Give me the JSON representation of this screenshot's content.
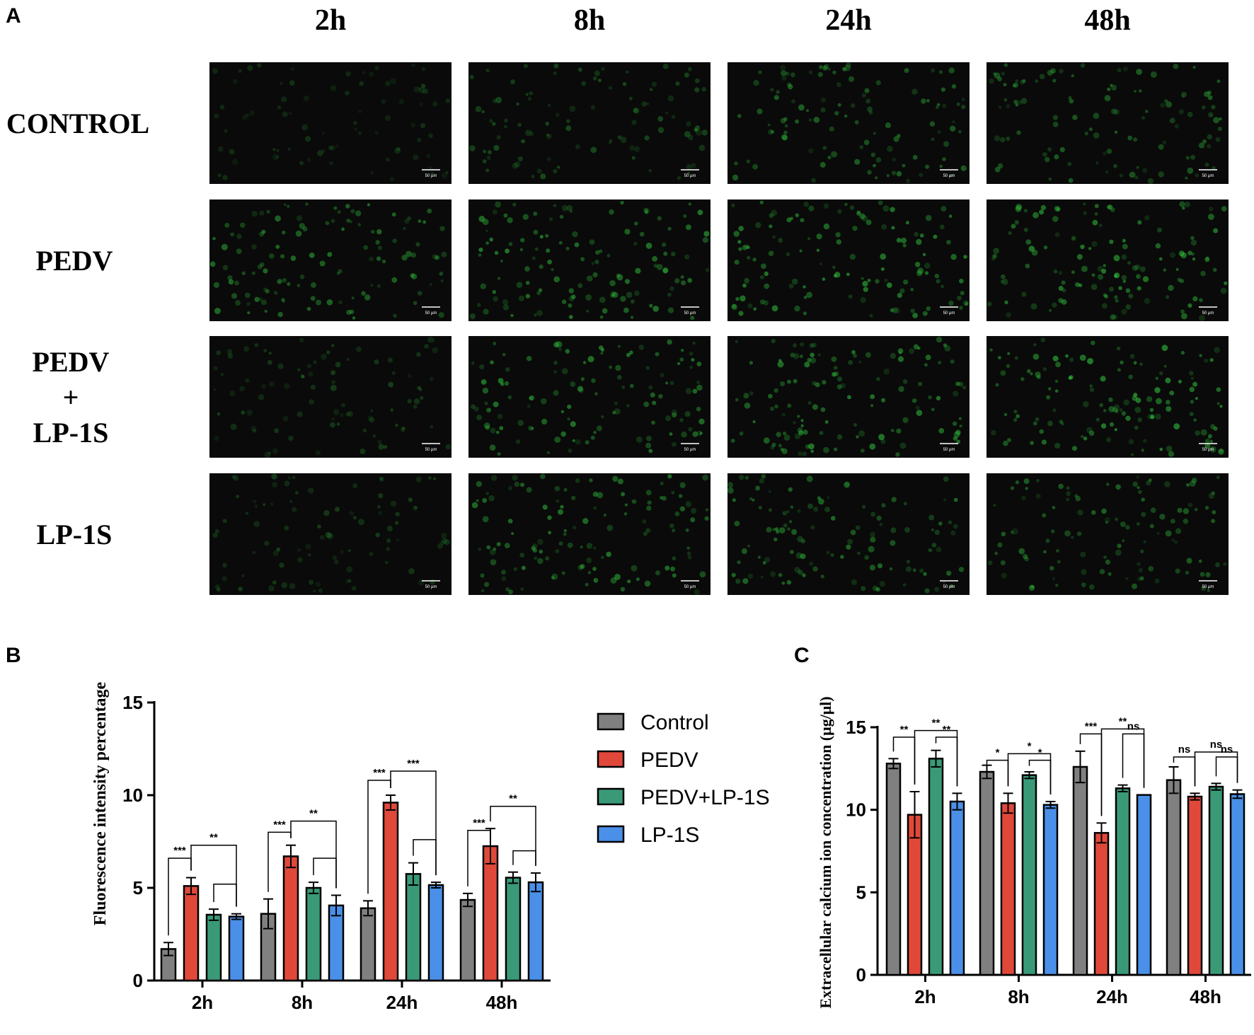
{
  "panels": {
    "A": "A",
    "B": "B",
    "C": "C"
  },
  "micrographs": {
    "columns": [
      "2h",
      "8h",
      "24h",
      "48h"
    ],
    "rows": [
      {
        "lines": [
          "CONTROL"
        ]
      },
      {
        "lines": [
          "PEDV"
        ]
      },
      {
        "lines": [
          "PEDV",
          "+",
          "LP-1S"
        ]
      },
      {
        "lines": [
          "LP-1S"
        ]
      }
    ],
    "scale_bar_label": "50 μm",
    "brightness": [
      [
        0.25,
        0.45,
        0.6,
        0.6
      ],
      [
        0.7,
        0.8,
        0.8,
        0.8
      ],
      [
        0.35,
        0.75,
        0.8,
        0.85
      ],
      [
        0.35,
        0.75,
        0.7,
        0.6
      ]
    ]
  },
  "colors": {
    "Control": "#808080",
    "PEDV": "#e0493a",
    "PEDV+LP-1S": "#3a9a78",
    "LP-1S": "#4a90e8",
    "background": "#0a0a0a",
    "cell": "#2fb83a"
  },
  "legend": {
    "items": [
      "Control",
      "PEDV",
      "PEDV+LP-1S",
      "LP-1S"
    ]
  },
  "chart_data": [
    {
      "id": "B",
      "type": "bar",
      "title": "",
      "xlabel": "",
      "ylabel": "Fluorescence intensity percentage",
      "ylim": [
        0,
        15
      ],
      "yticks": [
        "0",
        "5",
        "10",
        "15"
      ],
      "categories": [
        "2h",
        "8h",
        "24h",
        "48h"
      ],
      "series": [
        {
          "name": "Control",
          "values": [
            1.7,
            3.6,
            3.9,
            4.35
          ],
          "errors": [
            0.35,
            0.8,
            0.4,
            0.35
          ]
        },
        {
          "name": "PEDV",
          "values": [
            5.1,
            6.7,
            9.6,
            7.25
          ],
          "errors": [
            0.45,
            0.6,
            0.4,
            0.95
          ]
        },
        {
          "name": "PEDV+LP-1S",
          "values": [
            3.55,
            5.0,
            5.75,
            5.55
          ],
          "errors": [
            0.3,
            0.3,
            0.6,
            0.3
          ]
        },
        {
          "name": "LP-1S",
          "values": [
            3.45,
            4.05,
            5.15,
            5.3
          ],
          "errors": [
            0.15,
            0.55,
            0.15,
            0.5
          ]
        }
      ],
      "significance": [
        {
          "labels": [
            "***",
            "**",
            ""
          ],
          "heights": [
            6.6,
            7.3,
            5.2
          ]
        },
        {
          "labels": [
            "***",
            "**",
            ""
          ],
          "heights": [
            8.0,
            8.6,
            6.6
          ]
        },
        {
          "labels": [
            "***",
            "***",
            ""
          ],
          "heights": [
            10.8,
            11.3,
            7.6
          ]
        },
        {
          "labels": [
            "***",
            "**",
            ""
          ],
          "heights": [
            8.1,
            9.4,
            7.0
          ]
        }
      ]
    },
    {
      "id": "C",
      "type": "bar",
      "title": "",
      "xlabel": "",
      "ylabel": "Extracellular calcium ion concentration (μg/μl)",
      "ylim": [
        0,
        15
      ],
      "yticks": [
        "0",
        "5",
        "10",
        "15"
      ],
      "categories": [
        "2h",
        "8h",
        "24h",
        "48h"
      ],
      "series": [
        {
          "name": "Control",
          "values": [
            12.8,
            12.3,
            12.6,
            11.8
          ],
          "errors": [
            0.3,
            0.4,
            0.95,
            0.8
          ]
        },
        {
          "name": "PEDV",
          "values": [
            9.7,
            10.4,
            8.6,
            10.8
          ],
          "errors": [
            1.4,
            0.6,
            0.6,
            0.2
          ]
        },
        {
          "name": "PEDV+LP-1S",
          "values": [
            13.1,
            12.1,
            11.3,
            11.4
          ],
          "errors": [
            0.5,
            0.2,
            0.2,
            0.2
          ]
        },
        {
          "name": "LP-1S",
          "values": [
            10.5,
            10.3,
            10.9,
            10.95
          ],
          "errors": [
            0.5,
            0.2,
            0.0,
            0.25
          ]
        }
      ],
      "significance": [
        {
          "labels": [
            "**",
            "**",
            "**"
          ],
          "heights": [
            14.4,
            14.8,
            14.4
          ]
        },
        {
          "labels": [
            "*",
            "*",
            "*"
          ],
          "heights": [
            13.0,
            13.4,
            13.0
          ]
        },
        {
          "labels": [
            "***",
            "**",
            "ns"
          ],
          "heights": [
            14.6,
            14.9,
            14.6
          ]
        },
        {
          "labels": [
            "ns",
            "ns",
            "ns"
          ],
          "heights": [
            13.2,
            13.5,
            13.2
          ]
        }
      ]
    }
  ]
}
